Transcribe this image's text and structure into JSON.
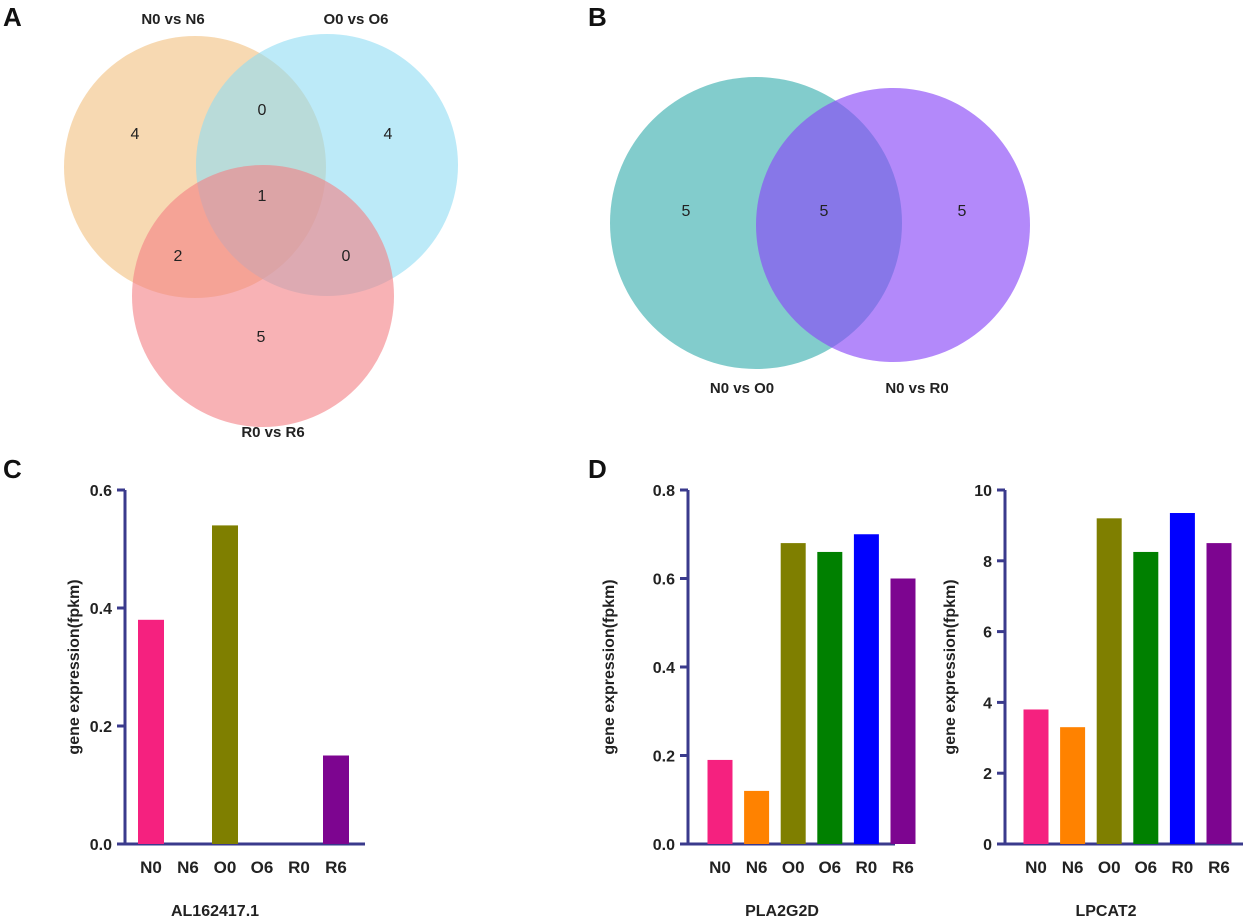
{
  "panels": {
    "a": "A",
    "b": "B",
    "c": "C",
    "d": "D"
  },
  "venn_a": {
    "sets": [
      "N0 vs N6",
      "O0 vs O6",
      "R0 vs R6"
    ],
    "colors": [
      "#f2c07e",
      "#8fdcf4",
      "#f47e84"
    ],
    "counts": {
      "n_only": "4",
      "o_only": "4",
      "r_only": "5",
      "n_o": "0",
      "n_r": "2",
      "o_r": "0",
      "n_o_r": "1"
    }
  },
  "venn_b": {
    "sets": [
      "N0 vs O0",
      "N0 vs R0"
    ],
    "colors": [
      "#3fb0b0",
      "#8a4af8"
    ],
    "counts": {
      "left_only": "5",
      "both": "5",
      "right_only": "5"
    }
  },
  "chart_data": [
    {
      "type": "bar",
      "title": "AL162417.1",
      "xlabel": "AL162417.1",
      "ylabel": "gene expression(fpkm)",
      "categories": [
        "N0",
        "N6",
        "O0",
        "O6",
        "R0",
        "R6"
      ],
      "values": [
        0.38,
        0,
        0.54,
        0,
        0,
        0.15
      ],
      "colors": [
        "#f5217f",
        "#ff8200",
        "#7f7f00",
        "#008000",
        "#0000ff",
        "#7d0590"
      ],
      "ylim": [
        0,
        0.6
      ],
      "yticks": [
        0.0,
        0.2,
        0.4,
        0.6
      ],
      "ytick_labels": [
        "0.0",
        "0.2",
        "0.4",
        "0.6"
      ]
    },
    {
      "type": "bar",
      "title": "PLA2G2D",
      "xlabel": "PLA2G2D",
      "ylabel": "gene expression(fpkm)",
      "categories": [
        "N0",
        "N6",
        "O0",
        "O6",
        "R0",
        "R6"
      ],
      "values": [
        0.19,
        0.12,
        0.68,
        0.66,
        0.7,
        0.6
      ],
      "colors": [
        "#f5217f",
        "#ff8200",
        "#7f7f00",
        "#008000",
        "#0000ff",
        "#7d0590"
      ],
      "ylim": [
        0,
        0.8
      ],
      "yticks": [
        0.0,
        0.2,
        0.4,
        0.6,
        0.8
      ],
      "ytick_labels": [
        "0.0",
        "0.2",
        "0.4",
        "0.6",
        "0.8"
      ]
    },
    {
      "type": "bar",
      "title": "LPCAT2",
      "xlabel": "LPCAT2",
      "ylabel": "gene expression(fpkm)",
      "categories": [
        "N0",
        "N6",
        "O0",
        "O6",
        "R0",
        "R6"
      ],
      "values": [
        3.8,
        3.3,
        9.2,
        8.25,
        9.35,
        8.5
      ],
      "colors": [
        "#f5217f",
        "#ff8200",
        "#7f7f00",
        "#008000",
        "#0000ff",
        "#7d0590"
      ],
      "ylim": [
        0,
        10
      ],
      "yticks": [
        0,
        2,
        4,
        6,
        8,
        10
      ],
      "ytick_labels": [
        "0",
        "2",
        "4",
        "6",
        "8",
        "10"
      ]
    }
  ]
}
